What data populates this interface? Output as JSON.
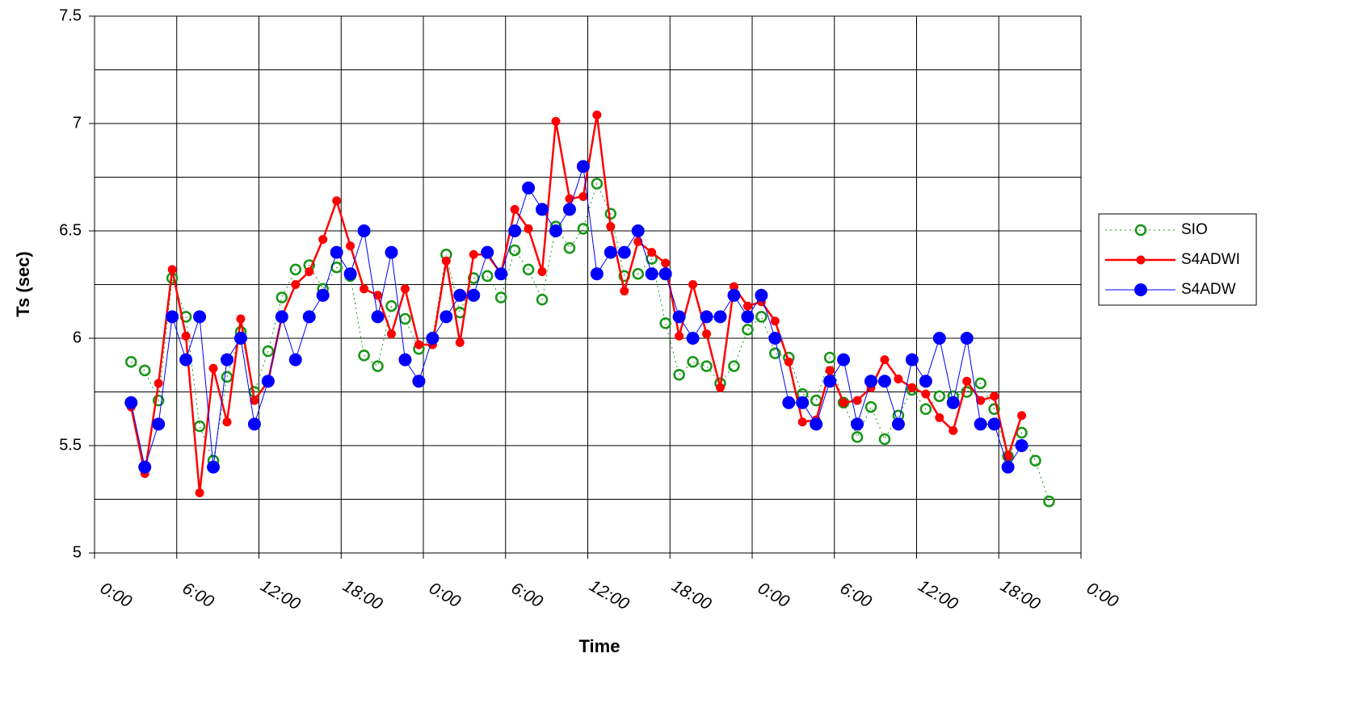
{
  "chart_data": {
    "type": "line",
    "x_label": "Time",
    "y_label": "Ts (sec)",
    "xlim": [
      0,
      72
    ],
    "xticks": [
      {
        "value": 0,
        "label": "0:00"
      },
      {
        "value": 6,
        "label": "6:00"
      },
      {
        "value": 12,
        "label": "12:00"
      },
      {
        "value": 18,
        "label": "18:00"
      },
      {
        "value": 24,
        "label": "0:00"
      },
      {
        "value": 30,
        "label": "6:00"
      },
      {
        "value": 36,
        "label": "12:00"
      },
      {
        "value": 42,
        "label": "18:00"
      },
      {
        "value": 48,
        "label": "0:00"
      },
      {
        "value": 54,
        "label": "6:00"
      },
      {
        "value": 60,
        "label": "12:00"
      },
      {
        "value": 66,
        "label": "18:00"
      },
      {
        "value": 72,
        "label": "0:00"
      }
    ],
    "ylim": [
      5,
      7.5
    ],
    "yticks": [
      5,
      5.5,
      6,
      6.5,
      7,
      7.5
    ],
    "y_minor_grid": [
      5.25,
      5.75,
      6.25,
      6.75,
      7.25
    ],
    "grid": true,
    "legend": "right",
    "x": [
      2.67,
      3.67,
      4.67,
      5.67,
      6.67,
      7.67,
      8.67,
      9.67,
      10.67,
      11.67,
      12.67,
      13.67,
      14.67,
      15.67,
      16.67,
      17.67,
      18.67,
      19.67,
      20.67,
      21.67,
      22.67,
      23.67,
      24.67,
      25.67,
      26.67,
      27.67,
      28.67,
      29.67,
      30.67,
      31.67,
      32.67,
      33.67,
      34.67,
      35.67,
      36.67,
      37.67,
      38.67,
      39.67,
      40.67,
      41.67,
      42.67,
      43.67,
      44.67,
      45.67,
      46.67,
      47.67,
      48.67,
      49.67,
      50.67,
      51.67,
      52.67,
      53.67,
      54.67,
      55.67,
      56.67,
      57.67,
      58.67,
      59.67,
      60.67,
      61.67,
      62.67,
      63.67,
      64.67,
      65.67,
      66.67,
      67.67,
      68.67,
      69.67
    ],
    "series": [
      {
        "name": "SIO",
        "color": "#149614",
        "marker": "open",
        "dashed": true,
        "values": [
          5.89,
          5.85,
          5.71,
          6.28,
          6.1,
          5.59,
          5.43,
          5.82,
          6.03,
          5.75,
          5.94,
          6.19,
          6.32,
          6.34,
          6.23,
          6.33,
          6.29,
          5.92,
          5.87,
          6.15,
          6.09,
          5.95,
          6.0,
          6.39,
          6.12,
          6.28,
          6.29,
          6.19,
          6.41,
          6.32,
          6.18,
          6.52,
          6.42,
          6.51,
          6.72,
          6.58,
          6.29,
          6.3,
          6.37,
          6.07,
          5.83,
          5.89,
          5.87,
          5.79,
          5.87,
          6.04,
          6.1,
          5.93,
          5.91,
          5.74,
          5.71,
          5.91,
          5.7,
          5.54,
          5.68,
          5.53,
          5.64,
          5.76,
          5.67,
          5.73,
          5.73,
          5.75,
          5.79,
          5.67,
          5.45,
          5.56,
          5.43,
          5.24
        ]
      },
      {
        "name": "S4ADWI",
        "color": "#ff0000",
        "marker": "filled",
        "dashed": false,
        "values": [
          5.68,
          5.37,
          5.79,
          6.32,
          6.01,
          5.28,
          5.86,
          5.61,
          6.09,
          5.71,
          5.8,
          6.1,
          6.25,
          6.31,
          6.46,
          6.64,
          6.43,
          6.23,
          6.2,
          6.02,
          6.23,
          5.97,
          5.97,
          6.36,
          5.98,
          6.39,
          6.39,
          6.3,
          6.6,
          6.51,
          6.31,
          7.01,
          6.65,
          6.66,
          7.04,
          6.52,
          6.22,
          6.45,
          6.4,
          6.35,
          6.01,
          6.25,
          6.02,
          5.77,
          6.24,
          6.15,
          6.17,
          6.08,
          5.89,
          5.61,
          5.62,
          5.85,
          5.7,
          5.71,
          5.77,
          5.9,
          5.81,
          5.77,
          5.74,
          5.63,
          5.57,
          5.8,
          5.71,
          5.73,
          5.45,
          5.64,
          null,
          null
        ]
      },
      {
        "name": "S4ADW",
        "color": "#0000ff",
        "marker": "big",
        "dashed": false,
        "values": [
          5.7,
          5.4,
          5.6,
          6.1,
          5.9,
          6.1,
          5.4,
          5.9,
          6.0,
          5.6,
          5.8,
          6.1,
          5.9,
          6.1,
          6.2,
          6.4,
          6.3,
          6.5,
          6.1,
          6.4,
          5.9,
          5.8,
          6.0,
          6.1,
          6.2,
          6.2,
          6.4,
          6.3,
          6.5,
          6.7,
          6.6,
          6.5,
          6.6,
          6.8,
          6.3,
          6.4,
          6.4,
          6.5,
          6.3,
          6.3,
          6.1,
          6.0,
          6.1,
          6.1,
          6.2,
          6.1,
          6.2,
          6.0,
          5.7,
          5.7,
          5.6,
          5.8,
          5.9,
          5.6,
          5.8,
          5.8,
          5.6,
          5.9,
          5.8,
          6.0,
          5.7,
          6.0,
          5.6,
          5.6,
          5.4,
          5.5,
          null,
          null
        ]
      }
    ]
  }
}
